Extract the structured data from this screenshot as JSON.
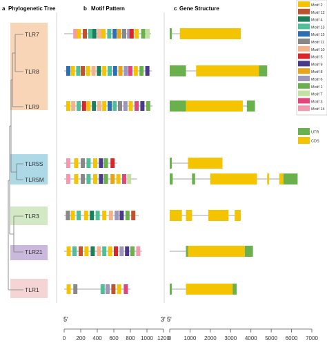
{
  "panels": {
    "a": {
      "letter": "a",
      "title": "Phylogenetic Tree"
    },
    "b": {
      "letter": "b",
      "title": "Motif Pattern"
    },
    "c": {
      "letter": "c",
      "title": "Gene Structure"
    }
  },
  "genes": [
    "TLR7",
    "TLR8",
    "TLR9",
    "TLR5S",
    "TLR5M",
    "TLR3",
    "TLR21",
    "TLR1"
  ],
  "clade_colors": {
    "TLR7-TLR9": "#f9d5b8",
    "TLR5": "#add8e6",
    "TLR3": "#d3e8c4",
    "TLR21": "#cbb8dd",
    "TLR1": "#f4d4d4"
  },
  "legend": {
    "motifs": [
      {
        "label": "Motif 2",
        "color": "#f5c400"
      },
      {
        "label": "Motif 12",
        "color": "#c0522e"
      },
      {
        "label": "Motif 4",
        "color": "#1a7f5a"
      },
      {
        "label": "Motif 13",
        "color": "#4fbf99"
      },
      {
        "label": "Motif 15",
        "color": "#2d6fb5"
      },
      {
        "label": "Motif 11",
        "color": "#888888"
      },
      {
        "label": "Motif 10",
        "color": "#f3b48c"
      },
      {
        "label": "Motif 5",
        "color": "#d9262b"
      },
      {
        "label": "Motif 9",
        "color": "#4a3a8c"
      },
      {
        "label": "Motif 8",
        "color": "#e8a317"
      },
      {
        "label": "Motif 6",
        "color": "#9d97bd"
      },
      {
        "label": "Motif 1",
        "color": "#6ab04c"
      },
      {
        "label": "Motif 7",
        "color": "#c2e0a0"
      },
      {
        "label": "Motif 3",
        "color": "#e0457b"
      },
      {
        "label": "Motif 14",
        "color": "#f49ab0"
      }
    ],
    "structure": [
      {
        "label": "UTR",
        "color": "#6ab04c"
      },
      {
        "label": "CDS",
        "color": "#f5c400"
      }
    ]
  },
  "motif_axis": {
    "start_label": "5'",
    "end_label": "3'",
    "ticks": [
      "0",
      "200",
      "400",
      "600",
      "800",
      "1000",
      "1200"
    ]
  },
  "gene_axis": {
    "start_label": "5'",
    "end_label": "3'",
    "ticks": [
      "0",
      "1000",
      "2000",
      "3000",
      "4000",
      "5000",
      "6000",
      "7000"
    ]
  },
  "motifs": [
    {
      "gene": "TLR7",
      "length": 1050,
      "motifs": [
        {
          "m": "Motif 14",
          "s": 110
        },
        {
          "m": "Motif 2",
          "s": 150
        },
        {
          "m": "Motif 12",
          "s": 225
        },
        {
          "m": "Motif 13",
          "s": 290
        },
        {
          "m": "Motif 4",
          "s": 340
        },
        {
          "m": "Motif 10",
          "s": 400
        },
        {
          "m": "Motif 2",
          "s": 450
        },
        {
          "m": "Motif 13",
          "s": 520
        },
        {
          "m": "Motif 15",
          "s": 585
        },
        {
          "m": "Motif 8",
          "s": 640
        },
        {
          "m": "Motif 11",
          "s": 700
        },
        {
          "m": "Motif 6",
          "s": 760
        },
        {
          "m": "Motif 5",
          "s": 790
        },
        {
          "m": "Motif 2",
          "s": 850
        },
        {
          "m": "Motif 1",
          "s": 930
        },
        {
          "m": "Motif 7",
          "s": 985
        }
      ]
    },
    {
      "gene": "TLR8",
      "length": 1060,
      "motifs": [
        {
          "m": "Motif 15",
          "s": 25
        },
        {
          "m": "Motif 2",
          "s": 80
        },
        {
          "m": "Motif 13",
          "s": 145
        },
        {
          "m": "Motif 12",
          "s": 200
        },
        {
          "m": "Motif 2",
          "s": 265
        },
        {
          "m": "Motif 10",
          "s": 330
        },
        {
          "m": "Motif 4",
          "s": 395
        },
        {
          "m": "Motif 2",
          "s": 460
        },
        {
          "m": "Motif 13",
          "s": 525
        },
        {
          "m": "Motif 15",
          "s": 590
        },
        {
          "m": "Motif 8",
          "s": 655
        },
        {
          "m": "Motif 6",
          "s": 720
        },
        {
          "m": "Motif 3",
          "s": 775
        },
        {
          "m": "Motif 2",
          "s": 840
        },
        {
          "m": "Motif 1",
          "s": 910
        },
        {
          "m": "Motif 9",
          "s": 980
        }
      ]
    },
    {
      "gene": "TLR9",
      "length": 1070,
      "motifs": [
        {
          "m": "Motif 2",
          "s": 25
        },
        {
          "m": "Motif 10",
          "s": 85
        },
        {
          "m": "Motif 13",
          "s": 150
        },
        {
          "m": "Motif 5",
          "s": 215
        },
        {
          "m": "Motif 2",
          "s": 270
        },
        {
          "m": "Motif 4",
          "s": 335
        },
        {
          "m": "Motif 10",
          "s": 400
        },
        {
          "m": "Motif 2",
          "s": 460
        },
        {
          "m": "Motif 15",
          "s": 525
        },
        {
          "m": "Motif 13",
          "s": 585
        },
        {
          "m": "Motif 11",
          "s": 650
        },
        {
          "m": "Motif 6",
          "s": 715
        },
        {
          "m": "Motif 2",
          "s": 780
        },
        {
          "m": "Motif 3",
          "s": 850
        },
        {
          "m": "Motif 9",
          "s": 920
        },
        {
          "m": "Motif 1",
          "s": 990
        }
      ]
    },
    {
      "gene": "TLR5S",
      "length": 640,
      "motifs": [
        {
          "m": "Motif 14",
          "s": 25
        },
        {
          "m": "Motif 2",
          "s": 120
        },
        {
          "m": "Motif 11",
          "s": 200
        },
        {
          "m": "Motif 13",
          "s": 270
        },
        {
          "m": "Motif 2",
          "s": 350
        },
        {
          "m": "Motif 9",
          "s": 420
        },
        {
          "m": "Motif 1",
          "s": 480
        },
        {
          "m": "Motif 5",
          "s": 560
        }
      ]
    },
    {
      "gene": "TLR5M",
      "length": 880,
      "motifs": [
        {
          "m": "Motif 14",
          "s": 25
        },
        {
          "m": "Motif 2",
          "s": 120
        },
        {
          "m": "Motif 11",
          "s": 200
        },
        {
          "m": "Motif 13",
          "s": 270
        },
        {
          "m": "Motif 2",
          "s": 350
        },
        {
          "m": "Motif 9",
          "s": 420
        },
        {
          "m": "Motif 1",
          "s": 480
        },
        {
          "m": "Motif 8",
          "s": 560
        },
        {
          "m": "Motif 2",
          "s": 630
        },
        {
          "m": "Motif 3",
          "s": 700
        },
        {
          "m": "Motif 7",
          "s": 760
        }
      ]
    },
    {
      "gene": "TLR3",
      "length": 900,
      "motifs": [
        {
          "m": "Motif 11",
          "s": 20
        },
        {
          "m": "Motif 2",
          "s": 80
        },
        {
          "m": "Motif 13",
          "s": 150
        },
        {
          "m": "Motif 2",
          "s": 240
        },
        {
          "m": "Motif 4",
          "s": 310
        },
        {
          "m": "Motif 13",
          "s": 380
        },
        {
          "m": "Motif 2",
          "s": 460
        },
        {
          "m": "Motif 10",
          "s": 540
        },
        {
          "m": "Motif 6",
          "s": 610
        },
        {
          "m": "Motif 9",
          "s": 670
        },
        {
          "m": "Motif 1",
          "s": 740
        },
        {
          "m": "Motif 12",
          "s": 810
        }
      ]
    },
    {
      "gene": "TLR21",
      "length": 940,
      "motifs": [
        {
          "m": "Motif 2",
          "s": 30
        },
        {
          "m": "Motif 13",
          "s": 100
        },
        {
          "m": "Motif 12",
          "s": 175
        },
        {
          "m": "Motif 2",
          "s": 245
        },
        {
          "m": "Motif 4",
          "s": 320
        },
        {
          "m": "Motif 10",
          "s": 395
        },
        {
          "m": "Motif 13",
          "s": 460
        },
        {
          "m": "Motif 2",
          "s": 530
        },
        {
          "m": "Motif 5",
          "s": 600
        },
        {
          "m": "Motif 6",
          "s": 670
        },
        {
          "m": "Motif 9",
          "s": 735
        },
        {
          "m": "Motif 1",
          "s": 800
        },
        {
          "m": "Motif 14",
          "s": 870
        }
      ]
    },
    {
      "gene": "TLR1",
      "length": 800,
      "motifs": [
        {
          "m": "Motif 2",
          "s": 30
        },
        {
          "m": "Motif 11",
          "s": 110
        },
        {
          "m": "Motif 13",
          "s": 440
        },
        {
          "m": "Motif 6",
          "s": 500
        },
        {
          "m": "Motif 12",
          "s": 570
        },
        {
          "m": "Motif 2",
          "s": 640
        },
        {
          "m": "Motif 3",
          "s": 720
        }
      ]
    }
  ],
  "structures": [
    {
      "gene": "TLR7",
      "length": 3500,
      "parts": [
        {
          "t": "UTR",
          "s": 0,
          "e": 100
        },
        {
          "t": "CDS",
          "s": 500,
          "e": 3500
        }
      ]
    },
    {
      "gene": "TLR8",
      "length": 4800,
      "parts": [
        {
          "t": "UTR",
          "s": 0,
          "e": 800
        },
        {
          "t": "CDS",
          "s": 1300,
          "e": 4400
        },
        {
          "t": "UTR",
          "s": 4400,
          "e": 4800
        }
      ]
    },
    {
      "gene": "TLR9",
      "length": 4200,
      "parts": [
        {
          "t": "UTR",
          "s": 0,
          "e": 800
        },
        {
          "t": "CDS",
          "s": 800,
          "e": 3600
        },
        {
          "t": "UTR",
          "s": 3800,
          "e": 4200
        }
      ]
    },
    {
      "gene": "TLR5S",
      "length": 2600,
      "parts": [
        {
          "t": "UTR",
          "s": 0,
          "e": 100
        },
        {
          "t": "CDS",
          "s": 900,
          "e": 2600
        }
      ]
    },
    {
      "gene": "TLR5M",
      "length": 6300,
      "parts": [
        {
          "t": "UTR",
          "s": 0,
          "e": 150
        },
        {
          "t": "UTR",
          "s": 1100,
          "e": 1250
        },
        {
          "t": "CDS",
          "s": 2000,
          "e": 4300
        },
        {
          "t": "CDS",
          "s": 4800,
          "e": 4900
        },
        {
          "t": "CDS",
          "s": 5400,
          "e": 5600
        },
        {
          "t": "UTR",
          "s": 5600,
          "e": 6300
        }
      ]
    },
    {
      "gene": "TLR3",
      "length": 3500,
      "parts": [
        {
          "t": "CDS",
          "s": 0,
          "e": 600
        },
        {
          "t": "CDS",
          "s": 800,
          "e": 1100
        },
        {
          "t": "CDS",
          "s": 1900,
          "e": 2900
        },
        {
          "t": "CDS",
          "s": 3200,
          "e": 3500
        }
      ]
    },
    {
      "gene": "TLR21",
      "length": 4100,
      "parts": [
        {
          "t": "UTR",
          "s": 800,
          "e": 900
        },
        {
          "t": "CDS",
          "s": 900,
          "e": 3700
        },
        {
          "t": "UTR",
          "s": 3700,
          "e": 4100
        }
      ]
    },
    {
      "gene": "TLR1",
      "length": 3300,
      "parts": [
        {
          "t": "UTR",
          "s": 0,
          "e": 100
        },
        {
          "t": "CDS",
          "s": 800,
          "e": 3100
        },
        {
          "t": "UTR",
          "s": 3100,
          "e": 3300
        }
      ]
    }
  ]
}
